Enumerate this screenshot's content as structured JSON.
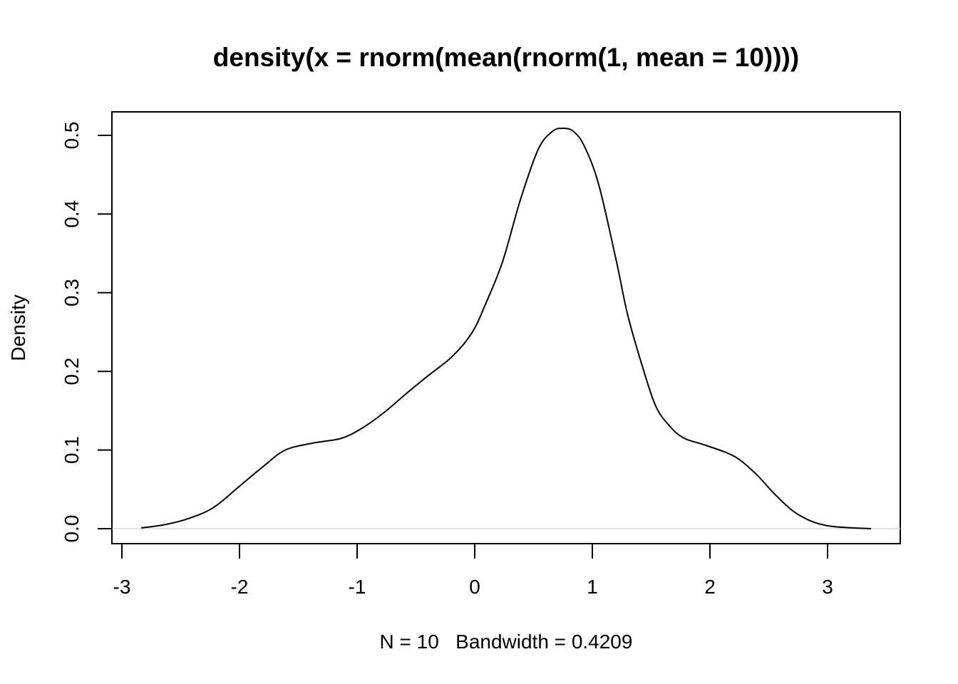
{
  "chart_data": {
    "type": "line",
    "title": "density(x = rnorm(mean(rnorm(1, mean = 10))))",
    "xlabel": "N = 10   Bandwidth = 0.4209",
    "ylabel": "Density",
    "xlim": [
      -3.0,
      3.6
    ],
    "ylim": [
      0.0,
      0.52
    ],
    "x_ticks": [
      -3,
      -2,
      -1,
      0,
      1,
      2,
      3
    ],
    "x_tick_labels": [
      "-3",
      "-2",
      "-1",
      "0",
      "1",
      "2",
      "3"
    ],
    "y_ticks": [
      0.0,
      0.1,
      0.2,
      0.3,
      0.4,
      0.5
    ],
    "y_tick_labels": [
      "0.0",
      "0.1",
      "0.2",
      "0.3",
      "0.4",
      "0.5"
    ],
    "grid": false,
    "baseline": {
      "y": 0.0,
      "color": "#d9d9d9"
    },
    "series": [
      {
        "name": "density",
        "color": "#000000",
        "x": [
          -2.836,
          -2.64,
          -2.43,
          -2.22,
          -2.0,
          -1.79,
          -1.61,
          -1.37,
          -1.13,
          -0.945,
          -0.76,
          -0.58,
          -0.4,
          -0.22,
          -0.097,
          0.0,
          0.085,
          0.236,
          0.388,
          0.539,
          0.66,
          0.752,
          0.84,
          0.933,
          1.055,
          1.206,
          1.297,
          1.418,
          1.539,
          1.66,
          1.78,
          1.964,
          2.206,
          2.388,
          2.57,
          2.75,
          2.99,
          3.37
        ],
        "y": [
          0.001,
          0.005,
          0.013,
          0.027,
          0.054,
          0.08,
          0.1,
          0.109,
          0.115,
          0.129,
          0.149,
          0.172,
          0.194,
          0.215,
          0.234,
          0.255,
          0.283,
          0.339,
          0.418,
          0.482,
          0.505,
          0.509,
          0.505,
          0.486,
          0.437,
          0.339,
          0.274,
          0.21,
          0.156,
          0.13,
          0.115,
          0.106,
          0.092,
          0.07,
          0.041,
          0.018,
          0.004,
          0.0
        ]
      }
    ],
    "stats": {
      "N": 10,
      "bandwidth": 0.4209
    }
  }
}
